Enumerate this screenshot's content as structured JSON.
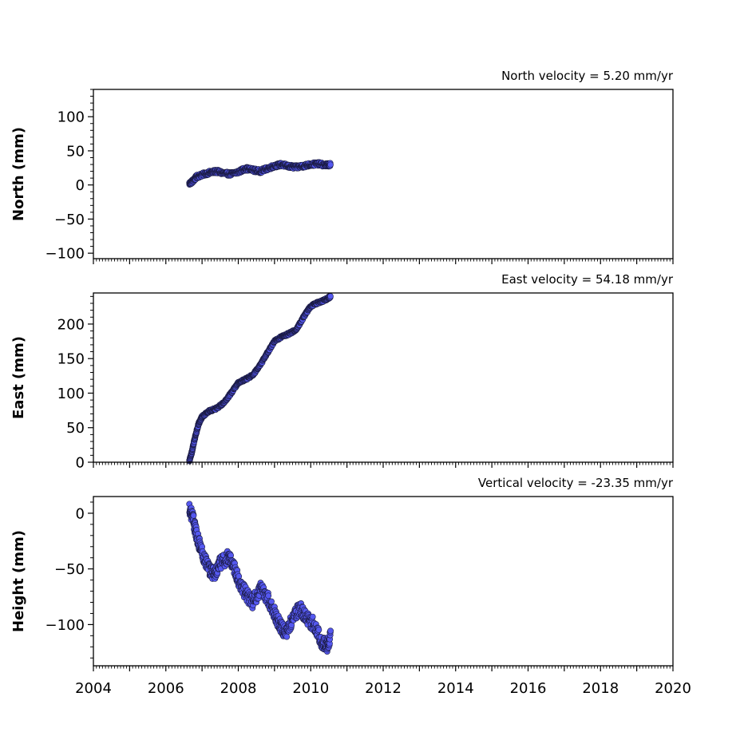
{
  "chart_data": [
    {
      "type": "scatter",
      "title": "North velocity = 5.20 mm/yr",
      "ylabel": "North (mm)",
      "xlim": [
        2004,
        2020
      ],
      "ylim": [
        -108,
        140
      ],
      "yticks": [
        100,
        50,
        0,
        -50,
        -100
      ],
      "ytick_labels": [
        "100",
        "50",
        "0",
        "−50",
        "−100"
      ],
      "marker_color": "#5558f0",
      "edge_color": "#1a1a40",
      "series": [
        {
          "x": [
            2006.65,
            2006.75,
            2006.85,
            2007.0,
            2007.2,
            2007.4,
            2007.6,
            2007.8,
            2008.0,
            2008.2,
            2008.4,
            2008.6,
            2008.8,
            2009.0,
            2009.2,
            2009.4,
            2009.6,
            2009.8,
            2010.0,
            2010.2,
            2010.4,
            2010.55
          ],
          "y": [
            2,
            6,
            12,
            15,
            18,
            20,
            17,
            16,
            19,
            24,
            22,
            20,
            24,
            28,
            30,
            27,
            26,
            28,
            30,
            31,
            29,
            30
          ]
        }
      ]
    },
    {
      "type": "scatter",
      "title": "East velocity = 54.18 mm/yr",
      "ylabel": "East (mm)",
      "xlim": [
        2004,
        2020
      ],
      "ylim": [
        0,
        245
      ],
      "yticks": [
        200,
        150,
        100,
        50,
        0
      ],
      "ytick_labels": [
        "200",
        "150",
        "100",
        "50",
        "0"
      ],
      "marker_color": "#5558f0",
      "edge_color": "#1a1a40",
      "series": [
        {
          "x": [
            2006.65,
            2006.72,
            2006.8,
            2006.9,
            2007.0,
            2007.2,
            2007.4,
            2007.6,
            2007.8,
            2008.0,
            2008.2,
            2008.4,
            2008.6,
            2008.8,
            2009.0,
            2009.2,
            2009.4,
            2009.6,
            2009.8,
            2010.0,
            2010.2,
            2010.4,
            2010.55
          ],
          "y": [
            2,
            15,
            35,
            55,
            66,
            74,
            78,
            86,
            100,
            115,
            120,
            126,
            140,
            158,
            175,
            182,
            186,
            192,
            210,
            226,
            231,
            235,
            240
          ]
        }
      ]
    },
    {
      "type": "scatter",
      "title": "Vertical velocity = -23.35 mm/yr",
      "ylabel": "Height (mm)",
      "xlim": [
        2004,
        2020
      ],
      "ylim": [
        -137,
        15
      ],
      "yticks": [
        0,
        -50,
        -100
      ],
      "ytick_labels": [
        "0",
        "−50",
        "−100"
      ],
      "xticks": [
        2004,
        2006,
        2008,
        2010,
        2012,
        2014,
        2016,
        2018,
        2020
      ],
      "xtick_labels": [
        "2004",
        "2006",
        "2008",
        "2010",
        "2012",
        "2014",
        "2016",
        "2018",
        "2020"
      ],
      "marker_color": "#5558f0",
      "edge_color": "#1a1a40",
      "series": [
        {
          "x": [
            2006.65,
            2006.75,
            2006.85,
            2007.0,
            2007.2,
            2007.35,
            2007.5,
            2007.7,
            2007.85,
            2008.0,
            2008.2,
            2008.4,
            2008.6,
            2008.8,
            2009.0,
            2009.15,
            2009.3,
            2009.5,
            2009.7,
            2009.9,
            2010.1,
            2010.3,
            2010.45,
            2010.55
          ],
          "y": [
            5,
            -5,
            -20,
            -35,
            -50,
            -55,
            -45,
            -40,
            -45,
            -60,
            -72,
            -80,
            -68,
            -75,
            -90,
            -100,
            -108,
            -95,
            -85,
            -95,
            -100,
            -115,
            -120,
            -110
          ]
        }
      ]
    }
  ]
}
